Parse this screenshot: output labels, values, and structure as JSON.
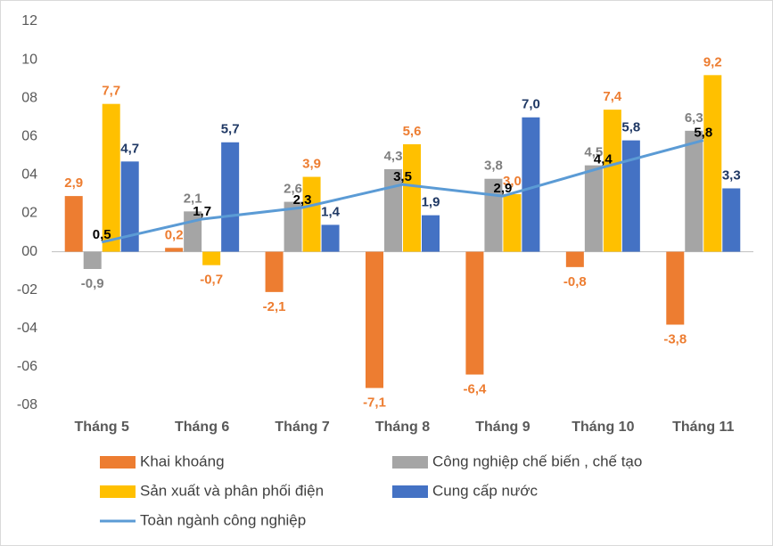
{
  "chart_data": {
    "type": "bar",
    "categories": [
      "Tháng 5",
      "Tháng 6",
      "Tháng 7",
      "Tháng 8",
      "Tháng 9",
      "Tháng 10",
      "Tháng 11"
    ],
    "series": [
      {
        "name": "Khai khoáng",
        "color": "#ed7d31",
        "label_color": "#ed7d31",
        "values": [
          2.9,
          0.2,
          -2.1,
          -7.1,
          -6.4,
          -0.8,
          -3.8
        ],
        "value_labels": [
          "2,9",
          "0,2",
          "-2,1",
          "-7,1",
          "-6,4",
          "-0,8",
          "-3,8"
        ]
      },
      {
        "name": "Công nghiệp chế biến , chế tạo",
        "color": "#a5a5a5",
        "label_color": "#7f7f7f",
        "values": [
          -0.9,
          2.1,
          2.6,
          4.3,
          3.8,
          4.5,
          6.3
        ],
        "value_labels": [
          "-0,9",
          "2,1",
          "2,6",
          "4,3",
          "3,8",
          "4,5",
          "6,3"
        ]
      },
      {
        "name": "Sản xuất và phân phối điện",
        "color": "#ffc000",
        "label_color": "#ed7d31",
        "values": [
          7.7,
          -0.7,
          3.9,
          5.6,
          3.0,
          7.4,
          9.2
        ],
        "value_labels": [
          "7,7",
          "-0,7",
          "3,9",
          "5,6",
          "3,0",
          "7,4",
          "9,2"
        ]
      },
      {
        "name": "Cung cấp nước",
        "color": "#4472c4",
        "label_color": "#1f3864",
        "values": [
          4.7,
          5.7,
          1.4,
          1.9,
          7.0,
          5.8,
          3.3
        ],
        "value_labels": [
          "4,7",
          "5,7",
          "1,4",
          "1,9",
          "7,0",
          "5,8",
          "3,3"
        ]
      },
      {
        "name": "Toàn ngành công nghiệp",
        "type": "line",
        "color": "#5b9bd5",
        "label_color": "#000000",
        "values": [
          0.5,
          1.7,
          2.3,
          3.5,
          2.9,
          4.4,
          5.8
        ],
        "value_labels": [
          "0,5",
          "1,7",
          "2,3",
          "3,5",
          "2,9",
          "4,4",
          "5,8"
        ]
      }
    ],
    "ylim": [
      -8,
      12
    ],
    "yticks": [
      {
        "value": -8,
        "label": "-08"
      },
      {
        "value": -6,
        "label": "-06"
      },
      {
        "value": -4,
        "label": "-04"
      },
      {
        "value": -2,
        "label": "-02"
      },
      {
        "value": 0,
        "label": "00"
      },
      {
        "value": 2,
        "label": "02"
      },
      {
        "value": 4,
        "label": "04"
      },
      {
        "value": 6,
        "label": "06"
      },
      {
        "value": 8,
        "label": "08"
      },
      10,
      12
    ],
    "grid": false,
    "legend": "bottom"
  }
}
